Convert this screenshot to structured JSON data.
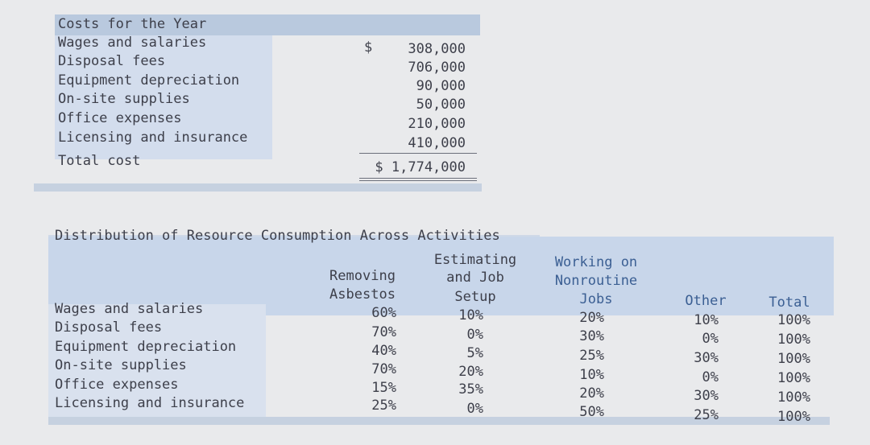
{
  "costs": {
    "title": "Costs for the Year",
    "currency_symbol": "$",
    "items": [
      {
        "label": "Wages and salaries",
        "amount": "308,000"
      },
      {
        "label": "Disposal fees",
        "amount": "706,000"
      },
      {
        "label": "Equipment depreciation",
        "amount": "90,000"
      },
      {
        "label": "On-site supplies",
        "amount": "50,000"
      },
      {
        "label": "Office expenses",
        "amount": "210,000"
      },
      {
        "label": "Licensing and insurance",
        "amount": "410,000"
      }
    ],
    "total_label": "Total cost",
    "total_amount": "$ 1,774,000"
  },
  "distribution": {
    "title": "Distribution of Resource Consumption Across Activities",
    "headers": {
      "removing": [
        "Removing",
        "Asbestos"
      ],
      "estimating": [
        "Estimating",
        "and Job",
        "Setup"
      ],
      "working": [
        "Working on",
        "Nonroutine",
        "Jobs"
      ],
      "other": "Other",
      "total": "Total"
    },
    "rows": [
      {
        "label": "Wages and salaries",
        "removing": "60%",
        "estimating": "10%",
        "working": "20%",
        "other": "10%",
        "total": "100%"
      },
      {
        "label": "Disposal fees",
        "removing": "70%",
        "estimating": "0%",
        "working": "30%",
        "other": "0%",
        "total": "100%"
      },
      {
        "label": "Equipment depreciation",
        "removing": "40%",
        "estimating": "5%",
        "working": "25%",
        "other": "30%",
        "total": "100%"
      },
      {
        "label": "On-site supplies",
        "removing": "70%",
        "estimating": "20%",
        "working": "10%",
        "other": "0%",
        "total": "100%"
      },
      {
        "label": "Office expenses",
        "removing": "15%",
        "estimating": "35%",
        "working": "20%",
        "other": "30%",
        "total": "100%"
      },
      {
        "label": "Licensing and insurance",
        "removing": "25%",
        "estimating": "0%",
        "working": "50%",
        "other": "25%",
        "total": "100%"
      }
    ]
  }
}
